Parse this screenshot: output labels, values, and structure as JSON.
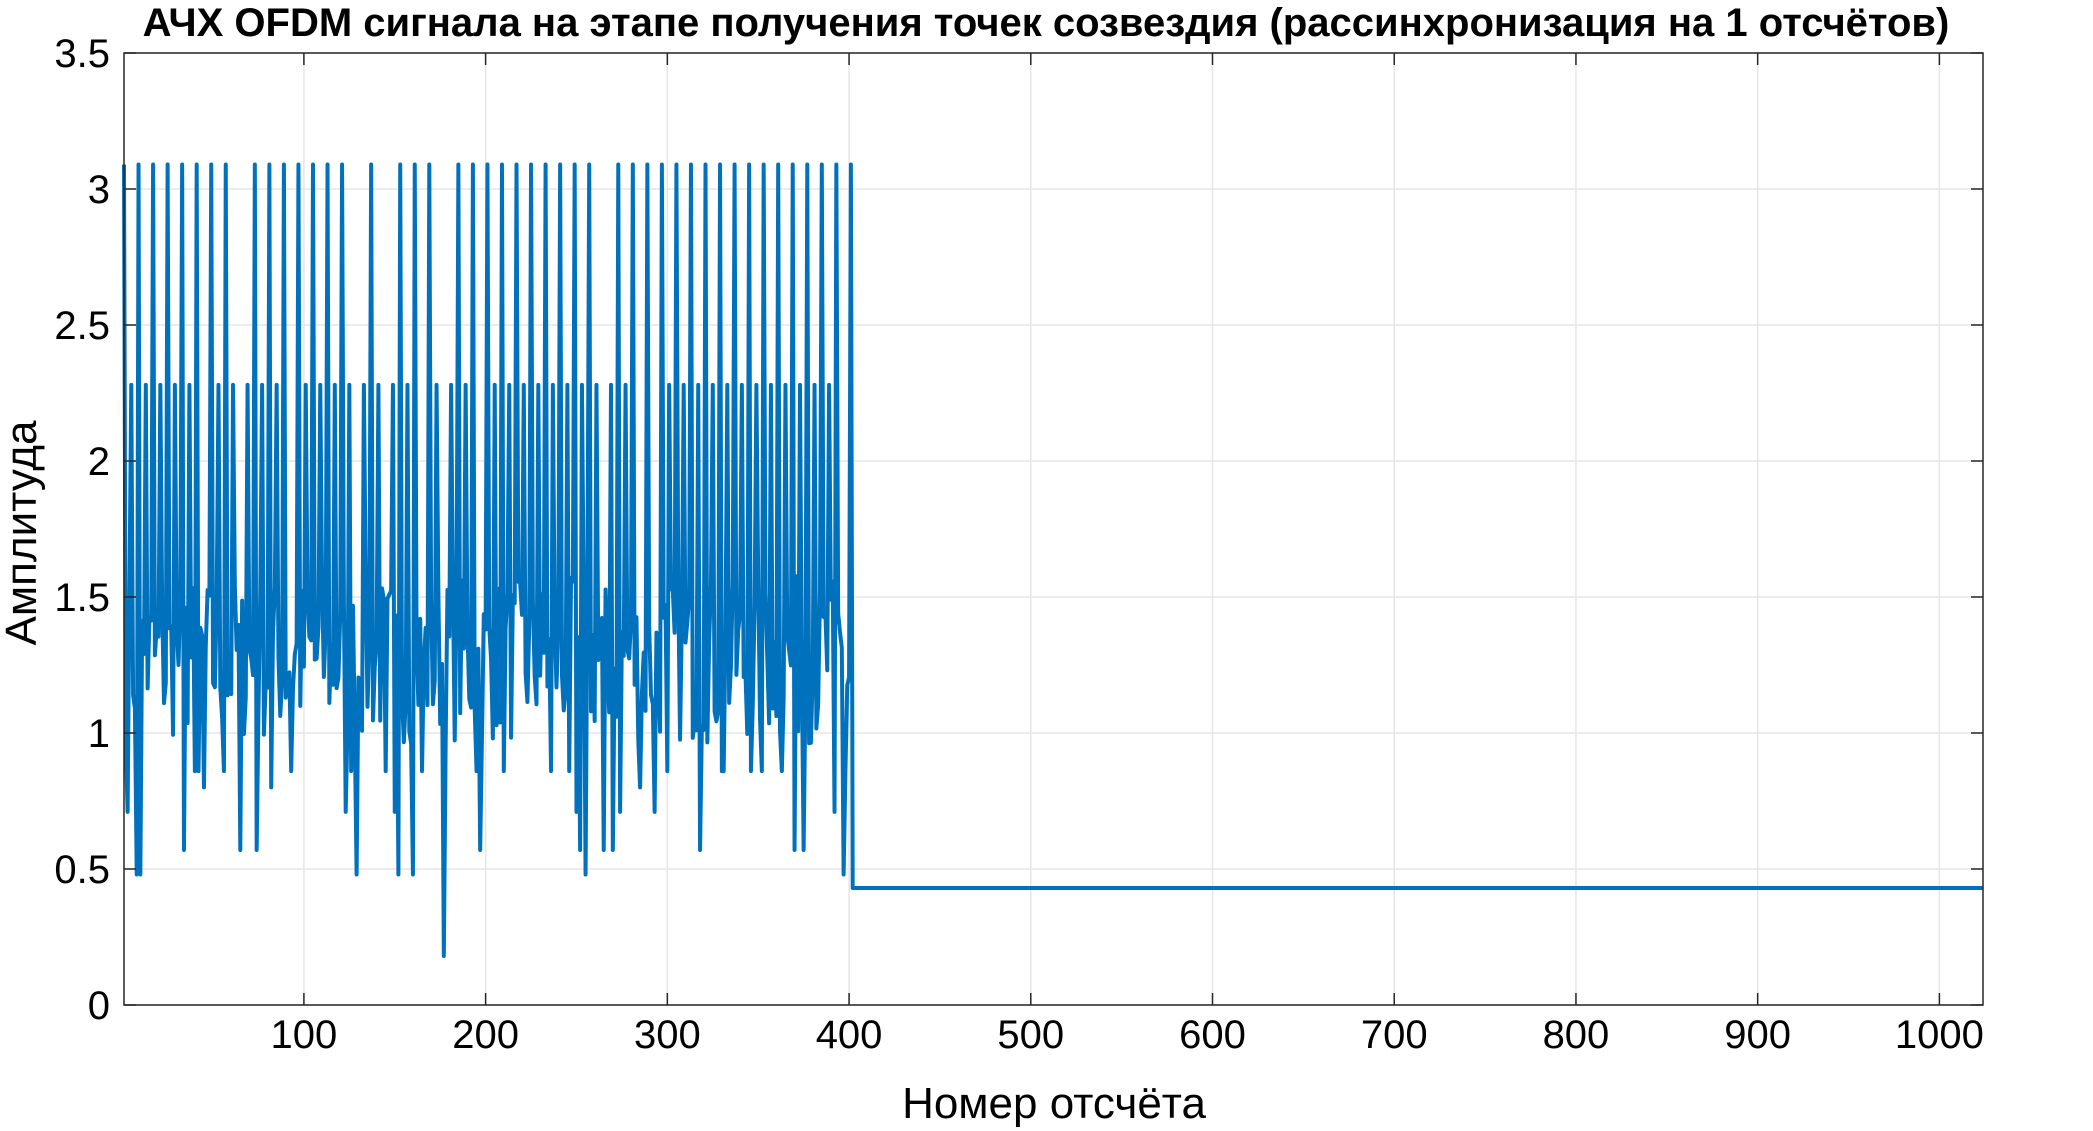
{
  "colors": {
    "background": "#ffffff",
    "grid": "#e6e6e6",
    "axis": "#262626",
    "series": "#0072bd"
  },
  "chart_data": {
    "type": "line",
    "title": "АЧХ OFDM сигнала на этапе получения точек созвездия (рассинхронизация на 1 отсчётов)",
    "xlabel": "Номер отсчёта",
    "ylabel": "Амплитуда",
    "xlim": [
      1,
      1024
    ],
    "ylim": [
      0,
      3.5
    ],
    "xticks": [
      100,
      200,
      300,
      400,
      500,
      600,
      700,
      800,
      900,
      1000
    ],
    "yticks": [
      0,
      0.5,
      1,
      1.5,
      2,
      2.5,
      3,
      3.5
    ],
    "xtick_labels": [
      "100",
      "200",
      "300",
      "400",
      "500",
      "600",
      "700",
      "800",
      "900",
      "1000"
    ],
    "ytick_labels": [
      "0",
      "0.5",
      "1",
      "1.5",
      "2",
      "2.5",
      "3",
      "3.5"
    ],
    "grid": true,
    "series": [
      {
        "active_range": [
          1,
          401
        ],
        "peak_period": 8,
        "peak_value": 3.09,
        "secondary_peak_value": 2.28,
        "baseline_value": 0.96,
        "dip_points": [
          {
            "x": 3,
            "y": 0.71
          },
          {
            "x": 8,
            "y": 0.48
          },
          {
            "x": 10,
            "y": 0.48
          },
          {
            "x": 34,
            "y": 0.57
          },
          {
            "x": 40,
            "y": 0.86
          },
          {
            "x": 42,
            "y": 0.86
          },
          {
            "x": 45,
            "y": 0.8
          },
          {
            "x": 56,
            "y": 0.86
          },
          {
            "x": 65,
            "y": 0.57
          },
          {
            "x": 74,
            "y": 0.57
          },
          {
            "x": 82,
            "y": 0.8
          },
          {
            "x": 93,
            "y": 0.86
          },
          {
            "x": 123,
            "y": 0.71
          },
          {
            "x": 126,
            "y": 0.86
          },
          {
            "x": 129,
            "y": 0.48
          },
          {
            "x": 145,
            "y": 0.86
          },
          {
            "x": 150,
            "y": 0.71
          },
          {
            "x": 152,
            "y": 0.48
          },
          {
            "x": 160,
            "y": 0.48
          },
          {
            "x": 165,
            "y": 0.86
          },
          {
            "x": 177,
            "y": 0.18
          },
          {
            "x": 195,
            "y": 0.86
          },
          {
            "x": 197,
            "y": 0.57
          },
          {
            "x": 210,
            "y": 0.86
          },
          {
            "x": 236,
            "y": 0.86
          },
          {
            "x": 246,
            "y": 0.86
          },
          {
            "x": 250,
            "y": 0.71
          },
          {
            "x": 252,
            "y": 0.57
          },
          {
            "x": 255,
            "y": 0.48
          },
          {
            "x": 265,
            "y": 0.57
          },
          {
            "x": 270,
            "y": 0.57
          },
          {
            "x": 274,
            "y": 0.71
          },
          {
            "x": 285,
            "y": 0.8
          },
          {
            "x": 293,
            "y": 0.71
          },
          {
            "x": 300,
            "y": 0.86
          },
          {
            "x": 318,
            "y": 0.57
          },
          {
            "x": 330,
            "y": 0.86
          },
          {
            "x": 331,
            "y": 0.86
          },
          {
            "x": 346,
            "y": 0.86
          },
          {
            "x": 352,
            "y": 0.86
          },
          {
            "x": 363,
            "y": 0.86
          },
          {
            "x": 370,
            "y": 0.57
          },
          {
            "x": 375,
            "y": 0.57
          },
          {
            "x": 392,
            "y": 0.71
          },
          {
            "x": 397,
            "y": 0.48
          },
          {
            "x": 398,
            "y": 0.86
          }
        ],
        "tail_value": 0.43
      }
    ]
  }
}
